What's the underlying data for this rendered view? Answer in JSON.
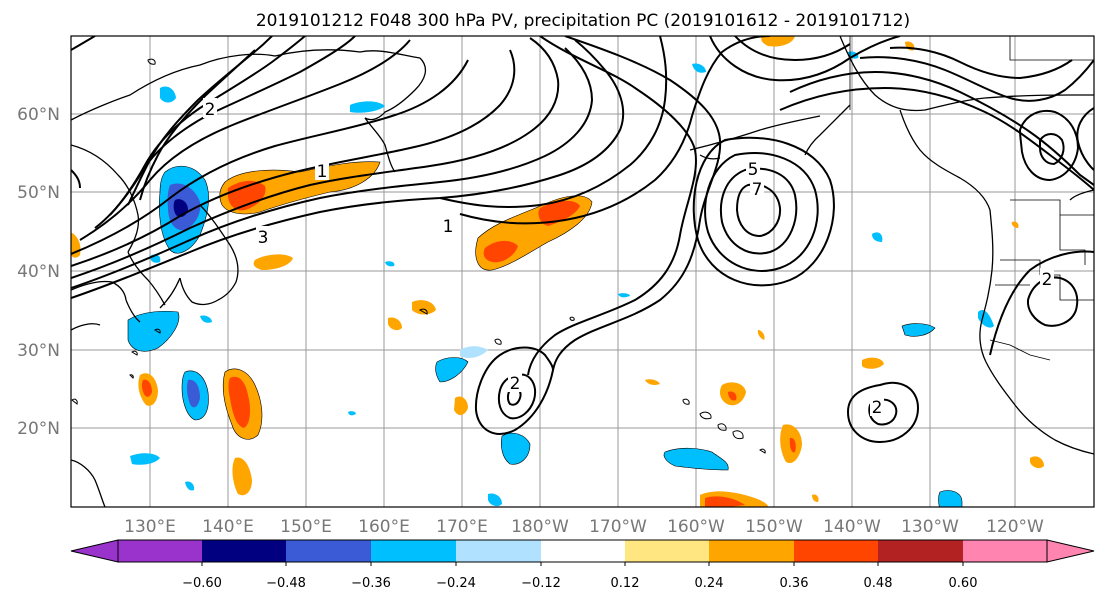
{
  "title": "2019101212 F048 300 hPa PV, precipitation PC (2019101612 - 2019101712)",
  "lon_labels": [
    "130°E",
    "140°E",
    "150°E",
    "160°E",
    "170°E",
    "180°W",
    "170°W",
    "160°W",
    "150°W",
    "140°W",
    "130°W",
    "120°W"
  ],
  "lat_labels": [
    "60°N",
    "50°N",
    "40°N",
    "30°N",
    "20°N"
  ],
  "colorbar": {
    "ticks": [
      "−0.60",
      "−0.48",
      "−0.36",
      "−0.24",
      "−0.12",
      "0.12",
      "0.24",
      "0.36",
      "0.48",
      "0.60"
    ],
    "colors": [
      "#9933cc",
      "#000080",
      "#3b5bd6",
      "#00bfff",
      "#b0e2ff",
      "#ffffff",
      "#ffe680",
      "#ffa500",
      "#ff4500",
      "#b22222",
      "#ff85b0"
    ]
  },
  "contour_labels": {
    "jet_1": "1",
    "jet_2": "2",
    "jet_3": "3",
    "trough_5": "5",
    "trough_7": "7",
    "low_2": "2",
    "hawaii_2": "2"
  }
}
